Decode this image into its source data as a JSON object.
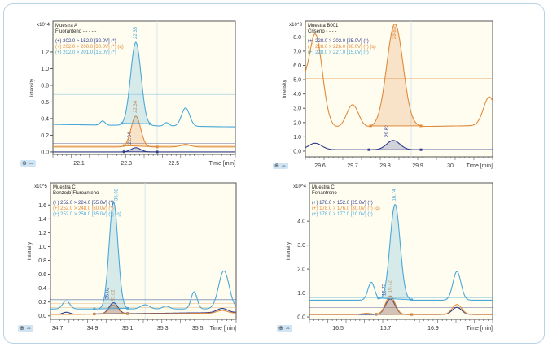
{
  "chart_data": [
    {
      "type": "line",
      "sample": "Muestra A",
      "compound": "Fluoranteno",
      "compound_marker": "- - - - -",
      "ylabel": "Intensity",
      "yscale": "x10^4",
      "xlabel": "Time [min]",
      "xlim": [
        21.99,
        22.76
      ],
      "ylim": [
        -0.03,
        1.57
      ],
      "xticks": [
        "22.1",
        "22.3",
        "22.5"
      ],
      "xtick_values": [
        22.1,
        22.3,
        22.5
      ],
      "yticks": [
        "0.0",
        "0.2",
        "0.4",
        "0.6",
        "0.8",
        "1.0",
        "1.2"
      ],
      "ytick_values": [
        0,
        0.2,
        0.4,
        0.6,
        0.8,
        1.0,
        1.2
      ],
      "vgrid": [
        22.43
      ],
      "series": [
        {
          "name": "(+) 202.0 > 152.0 [32.0V] (*)",
          "color": "#2e3a8c",
          "baseline": [
            0.0,
            0.0
          ],
          "peaks": [
            [
              22.34,
              0.05,
              0.02
            ]
          ],
          "integration": [
            22.29,
            22.43
          ],
          "peak_label": "22.34",
          "refs": [
            0.1
          ]
        },
        {
          "name": "(+) 202.0 > 200.0 [30.0V] (*) (q)",
          "color": "#e08a3c",
          "baseline": [
            0.06,
            0.06
          ],
          "peaks": [
            [
              22.34,
              0.37,
              0.02
            ],
            [
              22.55,
              0.03,
              0.02
            ]
          ],
          "integration": [
            22.29,
            22.43
          ],
          "peak_label": "22.34",
          "refs": [
            0.07
          ]
        },
        {
          "name": "(+) 202.0 > 201.0 [15.0V] (*)",
          "color": "#4aa8d8",
          "baseline": [
            0.33,
            0.3
          ],
          "peaks": [
            [
              22.34,
              1.0,
              0.022
            ],
            [
              22.2,
              0.05,
              0.01
            ],
            [
              22.55,
              0.22,
              0.017
            ],
            [
              22.47,
              0.04,
              0.01
            ]
          ],
          "integration": [
            22.28,
            22.4
          ],
          "peak_label": "22.35",
          "refs": [
            1.27,
            0.69
          ]
        }
      ]
    },
    {
      "type": "line",
      "sample": "Muestra B001",
      "compound": "Criseno",
      "compound_marker": "- - - -",
      "ylabel": "Intensity",
      "yscale": "x10^3",
      "xlabel": "Time [min]",
      "xlim": [
        29.555,
        30.13
      ],
      "ylim": [
        -0.4,
        9.1
      ],
      "xticks": [
        "29.6",
        "29.7",
        "29.8",
        "29.9",
        "30"
      ],
      "xtick_values": [
        29.6,
        29.7,
        29.8,
        29.9,
        30.0
      ],
      "yticks": [
        "0.0",
        "1.0",
        "2.0",
        "3.0",
        "4.0",
        "5.0",
        "6.0",
        "7.0",
        "8.0"
      ],
      "ytick_values": [
        0,
        1,
        2,
        3,
        4,
        5,
        6,
        7,
        8
      ],
      "vgrid": [
        29.88
      ],
      "series": [
        {
          "name": "(+) 228.0 > 202.0 [25.0V] (*)",
          "color": "#2e3a8c",
          "baseline": [
            0.1,
            0.1
          ],
          "peaks": [
            [
              29.585,
              0.45,
              0.02
            ],
            [
              29.825,
              0.65,
              0.02
            ]
          ],
          "integration": [
            29.75,
            29.91
          ],
          "peak_label": "29.82",
          "refs": []
        },
        {
          "name": "(+) 228.0 > 226.0 [30.0V] (*) (q)",
          "color": "#e08a3c",
          "baseline": [
            1.6,
            1.8
          ],
          "peaks": [
            [
              29.585,
              6.6,
              0.022
            ],
            [
              29.7,
              1.6,
              0.018
            ],
            [
              29.83,
              7.2,
              0.025
            ],
            [
              30.12,
              2.0,
              0.018
            ],
            [
              29.55,
              1.5,
              0.01
            ]
          ],
          "integration": [
            29.755,
            29.91
          ],
          "peak_label": "29.83",
          "refs": [
            5.1
          ]
        },
        {
          "name": "(+) 228.0 > 227.0 [15.0V] (*)",
          "color": "#4aa8d8",
          "baseline": [
            0,
            0
          ],
          "peaks": [],
          "integration": null,
          "peak_label": "29.83",
          "refs": []
        }
      ]
    },
    {
      "type": "line",
      "sample": "Muestra C",
      "compound": "Benzo(b)Fluroanteno",
      "compound_marker": "- - - -",
      "ylabel": "Intensity",
      "yscale": "x10^5",
      "xlabel": "Time [min]",
      "xlim": [
        34.66,
        35.72
      ],
      "ylim": [
        -0.05,
        1.92
      ],
      "xticks": [
        "34.7",
        "34.9",
        "35.1",
        "35.3",
        "35.5"
      ],
      "xtick_values": [
        34.7,
        34.9,
        35.1,
        35.3,
        35.5
      ],
      "yticks": [
        "0.0",
        "0.2",
        "0.4",
        "0.6",
        "0.8",
        "1.0",
        "1.2",
        "1.4",
        "1.6"
      ],
      "ytick_values": [
        0,
        0.2,
        0.4,
        0.6,
        0.8,
        1.0,
        1.2,
        1.4,
        1.6
      ],
      "vgrid": [
        35.2
      ],
      "series": [
        {
          "name": "(+) 252.0 > 224.0 [55.0V] (*)",
          "color": "#2e3a8c",
          "baseline": [
            0.02,
            0.05
          ],
          "peaks": [
            [
              35.02,
              0.16,
              0.025
            ],
            [
              35.64,
              0.06,
              0.03
            ],
            [
              34.75,
              0.03,
              0.02
            ]
          ],
          "integration": [
            34.91,
            35.1
          ],
          "peak_label": "35.02",
          "refs": [
            0.24
          ]
        },
        {
          "name": "(+) 252.0 > 248.0 [60.0V] (*)",
          "color": "#e08a3c",
          "baseline": [
            0.02,
            0.04
          ],
          "peaks": [
            [
              35.02,
              0.13,
              0.025
            ],
            [
              35.64,
              0.04,
              0.03
            ]
          ],
          "integration": [
            34.91,
            35.1
          ],
          "peak_label": "35.02",
          "refs": [
            0.18,
            0.12
          ]
        },
        {
          "name": "(+) 252.0 > 250.0 [35.0V] (*) (q)",
          "color": "#4aa8d8",
          "baseline": [
            0.1,
            0.1
          ],
          "peaks": [
            [
              35.02,
              1.55,
              0.025
            ],
            [
              34.75,
              0.12,
              0.02
            ],
            [
              35.2,
              0.06,
              0.025
            ],
            [
              35.32,
              0.04,
              0.02
            ],
            [
              35.48,
              0.25,
              0.017
            ],
            [
              35.65,
              0.55,
              0.03
            ]
          ],
          "integration": [
            34.91,
            35.1
          ],
          "peak_label": "35.02",
          "refs": [
            0.22
          ]
        }
      ]
    },
    {
      "type": "line",
      "sample": "Muestra C",
      "compound": "Fenantreno",
      "compound_marker": "- - -",
      "ylabel": "Intensity",
      "yscale": "x10^4",
      "xlabel": "Time [min]",
      "xlim": [
        16.38,
        17.15
      ],
      "ylim": [
        -0.1,
        5.6
      ],
      "xticks": [
        "16.5",
        "16.7",
        "16.9"
      ],
      "xtick_values": [
        16.5,
        16.7,
        16.9
      ],
      "yticks": [
        "0.0",
        "1.0",
        "2.0",
        "3.0",
        "4.0"
      ],
      "ytick_values": [
        0,
        1,
        2,
        3,
        4
      ],
      "vgrid": [],
      "series": [
        {
          "name": "(+) 178.0 > 152.0 [25.0V] (*)",
          "color": "#2e3a8c",
          "baseline": [
            0.1,
            0.1
          ],
          "peaks": [
            [
              16.72,
              0.65,
              0.02
            ],
            [
              17.0,
              0.3,
              0.02
            ]
          ],
          "integration": [
            16.66,
            16.81
          ],
          "peak_label": "16.72",
          "refs": [
            0.4
          ]
        },
        {
          "name": "(+) 178.0 > 176.0 [30.0V] (*) (q)",
          "color": "#e08a3c",
          "baseline": [
            0.1,
            0.1
          ],
          "peaks": [
            [
              16.72,
              0.78,
              0.02
            ],
            [
              17.0,
              0.42,
              0.02
            ],
            [
              16.62,
              0.05,
              0.02
            ]
          ],
          "integration": [
            16.66,
            16.81
          ],
          "peak_label": "16.72",
          "refs": []
        },
        {
          "name": "(+) 178.0 > 177.0 [10.0V] (*)",
          "color": "#4aa8d8",
          "baseline": [
            0.7,
            0.7
          ],
          "peaks": [
            [
              16.74,
              4.0,
              0.021
            ],
            [
              16.64,
              0.75,
              0.014
            ],
            [
              17.0,
              1.2,
              0.017
            ]
          ],
          "integration": [
            16.67,
            16.81
          ],
          "peak_label": "16.74",
          "refs": [
            0.8
          ]
        }
      ]
    }
  ],
  "zoom_controls": {
    "zoom_in": "⊕",
    "pan": "⇔"
  }
}
